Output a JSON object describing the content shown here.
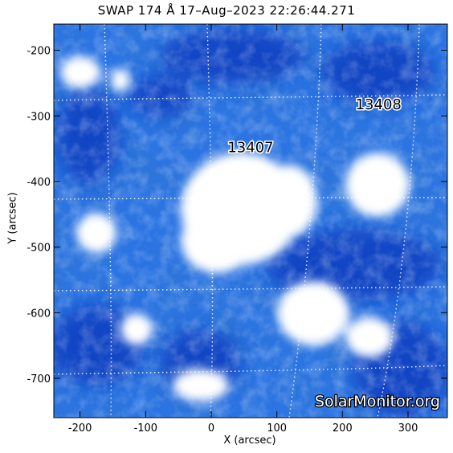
{
  "title": "SWAP 174 Å 17–Aug–2023 22:26:44.271",
  "x_axis": {
    "label": "X (arcsec)",
    "ticks": [
      -200,
      -100,
      0,
      100,
      200,
      300
    ],
    "range": [
      -240,
      360
    ]
  },
  "y_axis": {
    "label": "Y (arcsec)",
    "ticks": [
      -200,
      -300,
      -400,
      -500,
      -600,
      -700
    ],
    "range": [
      -760,
      -160
    ]
  },
  "regions": [
    {
      "label": "13407",
      "x": 60,
      "y": -355
    },
    {
      "label": "13408",
      "x": 255,
      "y": -290
    }
  ],
  "watermark": "SolarMonitor.org",
  "colors": {
    "background": "#0b3fc2",
    "mid": "#2f7ee8",
    "bright": "#ffffff",
    "grid": "#ffffff"
  }
}
